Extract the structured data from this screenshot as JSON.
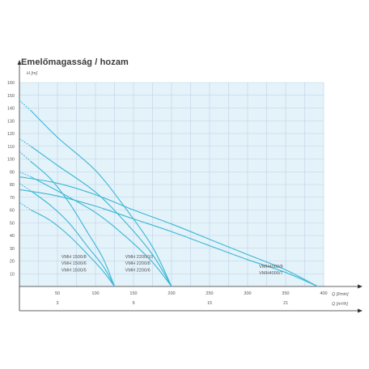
{
  "title": "Emelőmagasság / hozam",
  "chart_data": {
    "type": "line",
    "title": "Emelőmagasság / hozam",
    "ylabel": "H [m]",
    "xlabel": "Q [l/min]",
    "x2label": "Q [m³/h]",
    "xlim": [
      0,
      400
    ],
    "ylim": [
      0,
      160
    ],
    "yticks": [
      10,
      20,
      30,
      40,
      50,
      60,
      70,
      80,
      90,
      100,
      110,
      120,
      130,
      140,
      150,
      160
    ],
    "xticks": [
      50,
      100,
      150,
      200,
      250,
      300,
      350,
      400
    ],
    "x2ticks": [
      {
        "label": "3",
        "x": 50
      },
      {
        "label": "9",
        "x": 150
      },
      {
        "label": "15",
        "x": 250
      },
      {
        "label": "21",
        "x": 350
      }
    ],
    "grid": true,
    "line_color": "#3bb7d4",
    "grid_color": "#bcd3e4",
    "background": "#e4f2fa",
    "series": [
      {
        "name": "VMH 1500/8",
        "dashed_to": [
          0,
          106
        ],
        "points": [
          [
            15,
            98
          ],
          [
            40,
            85
          ],
          [
            65,
            66
          ],
          [
            90,
            42
          ],
          [
            110,
            22
          ],
          [
            125,
            0
          ]
        ]
      },
      {
        "name": "VMH 1500/6",
        "dashed_to": [
          0,
          81
        ],
        "points": [
          [
            15,
            75
          ],
          [
            40,
            64
          ],
          [
            65,
            50
          ],
          [
            90,
            31
          ],
          [
            110,
            16
          ],
          [
            125,
            0
          ]
        ]
      },
      {
        "name": "VMH 1500/5",
        "dashed_to": [
          0,
          66
        ],
        "points": [
          [
            15,
            60
          ],
          [
            40,
            52
          ],
          [
            65,
            40
          ],
          [
            90,
            25
          ],
          [
            110,
            12
          ],
          [
            125,
            0
          ]
        ]
      },
      {
        "name": "VMH 2200/10",
        "dashed_to": [
          0,
          146
        ],
        "points": [
          [
            15,
            138
          ],
          [
            50,
            117
          ],
          [
            100,
            91
          ],
          [
            140,
            61
          ],
          [
            175,
            31
          ],
          [
            200,
            0
          ]
        ]
      },
      {
        "name": "VMH 2200/8",
        "dashed_to": [
          0,
          116
        ],
        "points": [
          [
            15,
            110
          ],
          [
            50,
            95
          ],
          [
            100,
            74
          ],
          [
            140,
            50
          ],
          [
            175,
            25
          ],
          [
            200,
            0
          ]
        ]
      },
      {
        "name": "VMH 2200/6",
        "dashed_to": [
          0,
          90
        ],
        "points": [
          [
            15,
            86
          ],
          [
            50,
            75
          ],
          [
            100,
            58
          ],
          [
            140,
            39
          ],
          [
            175,
            19
          ],
          [
            200,
            0
          ]
        ]
      },
      {
        "name": "VMH4000/8",
        "points": [
          [
            0,
            86
          ],
          [
            50,
            81
          ],
          [
            100,
            72
          ],
          [
            150,
            60
          ],
          [
            200,
            49
          ],
          [
            250,
            37
          ],
          [
            300,
            25
          ],
          [
            350,
            13
          ],
          [
            392,
            0
          ]
        ]
      },
      {
        "name": "VMH4000/7",
        "points": [
          [
            0,
            76
          ],
          [
            50,
            71
          ],
          [
            100,
            63
          ],
          [
            150,
            53
          ],
          [
            200,
            43
          ],
          [
            250,
            32
          ],
          [
            300,
            21
          ],
          [
            350,
            11
          ],
          [
            392,
            0
          ]
        ]
      }
    ],
    "series_label_groups": [
      {
        "names": [
          "VMH 1500/8",
          "VMH 1500/6",
          "VMH 1500/5"
        ],
        "at_x": 55,
        "at_y": 17
      },
      {
        "names": [
          "VMH 2200/10",
          "VMH 2200/8",
          "VMH 2200/6"
        ],
        "at_x": 139,
        "at_y": 17
      },
      {
        "names": [
          "VMH4000/8",
          "VMH4000/7"
        ],
        "at_x": 315,
        "at_y": 12
      }
    ]
  }
}
